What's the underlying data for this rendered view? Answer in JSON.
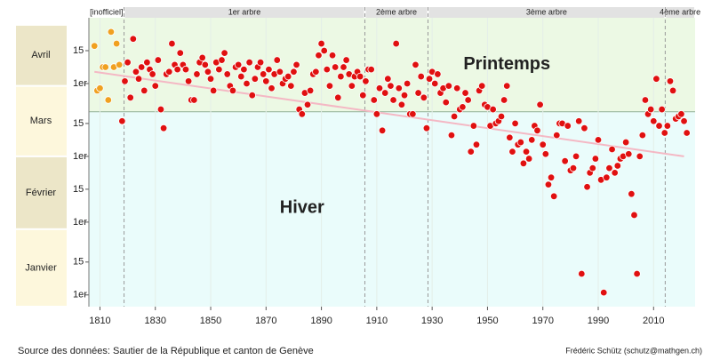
{
  "chart_data": {
    "type": "scatter",
    "title_spring": "Printemps",
    "title_winter": "Hiver",
    "source": "Source des données: Sautier de la République et canton de Genève",
    "author": "Frédéric Schütz (schutz@mathgen.ch)",
    "xlim": [
      1806,
      2025
    ],
    "ylim": [
      -4,
      119
    ],
    "xticks": [
      1810,
      1830,
      1850,
      1870,
      1890,
      1910,
      1930,
      1950,
      1970,
      1990,
      2010
    ],
    "yticks": [
      {
        "value": 1,
        "label": "1er"
      },
      {
        "value": 15,
        "label": "15"
      },
      {
        "value": 32,
        "label": "1er"
      },
      {
        "value": 46,
        "label": "15"
      },
      {
        "value": 60,
        "label": "1er"
      },
      {
        "value": 74,
        "label": "15"
      },
      {
        "value": 91,
        "label": "1er"
      },
      {
        "value": 105,
        "label": "15"
      }
    ],
    "months": [
      {
        "label": "Janvier",
        "start": -4,
        "end": 29
      },
      {
        "label": "Février",
        "start": 29,
        "end": 60
      },
      {
        "label": "Mars",
        "start": 60,
        "end": 90
      },
      {
        "label": "Avril",
        "start": 90,
        "end": 116
      }
    ],
    "season_boundary": 79,
    "periods": [
      {
        "label": "[inofficiel]",
        "start": 1806,
        "end": 1818.7,
        "color": "#f0a020"
      },
      {
        "label": "1er arbre",
        "start": 1818.7,
        "end": 1905.7,
        "color": "#333333"
      },
      {
        "label": "2ème arbre",
        "start": 1905.7,
        "end": 1928.5,
        "color": "#333333"
      },
      {
        "label": "3ème arbre",
        "start": 1928.5,
        "end": 2014.2,
        "color": "#333333"
      },
      {
        "label": "4ème arbre",
        "start": 2014.2,
        "end": 2025,
        "color": "#333333"
      }
    ],
    "trend": {
      "x": [
        1808,
        2021
      ],
      "values": [
        96,
        60
      ],
      "color": "#f4b8c4"
    },
    "series": [
      {
        "color": "#f0a020",
        "x": [
          1808,
          1809,
          1810,
          1811,
          1812,
          1813,
          1814,
          1815,
          1816,
          1817
        ],
        "values": [
          107,
          88,
          89,
          98,
          98,
          84,
          113,
          98,
          108,
          99
        ]
      },
      {
        "color": "#e01010",
        "x": [
          1818,
          1819,
          1820,
          1821,
          1822,
          1823,
          1824,
          1825,
          1826,
          1827,
          1828,
          1829,
          1830,
          1831,
          1832,
          1833,
          1834,
          1835,
          1836,
          1837,
          1838,
          1839,
          1840,
          1841,
          1842,
          1843,
          1844,
          1845,
          1846,
          1847,
          1848,
          1849,
          1850,
          1851,
          1852,
          1853,
          1854,
          1855,
          1856,
          1857,
          1858,
          1859,
          1860,
          1861,
          1862,
          1863,
          1864,
          1865,
          1866,
          1867,
          1868,
          1869,
          1870,
          1871,
          1872,
          1873,
          1874,
          1875,
          1876,
          1877,
          1878,
          1879,
          1880,
          1881,
          1882,
          1883,
          1884,
          1885,
          1886,
          1887,
          1888,
          1889,
          1890,
          1891,
          1892,
          1893,
          1894,
          1895,
          1896,
          1897,
          1898,
          1899,
          1900,
          1901,
          1902,
          1903,
          1904,
          1905,
          1906,
          1907,
          1908,
          1909,
          1910,
          1911,
          1912,
          1913,
          1914,
          1915,
          1916,
          1917,
          1918,
          1919,
          1920,
          1921,
          1922,
          1923,
          1924,
          1925,
          1926,
          1927,
          1928,
          1929,
          1930,
          1931,
          1932,
          1933,
          1934,
          1935,
          1936,
          1937,
          1938,
          1939,
          1940,
          1941,
          1942,
          1943,
          1944,
          1945,
          1946,
          1947,
          1948,
          1949,
          1950,
          1951,
          1952,
          1953,
          1954,
          1955,
          1956,
          1957,
          1958,
          1959,
          1960,
          1961,
          1962,
          1963,
          1964,
          1965,
          1966,
          1967,
          1968,
          1969,
          1970,
          1971,
          1972,
          1973,
          1974,
          1975,
          1976,
          1977,
          1978,
          1979,
          1980,
          1981,
          1982,
          1983,
          1984,
          1985,
          1986,
          1987,
          1988,
          1989,
          1990,
          1991,
          1992,
          1993,
          1994,
          1995,
          1996,
          1997,
          1998,
          1999,
          2000,
          2001,
          2002,
          2003,
          2004,
          2005,
          2006,
          2007,
          2008,
          2009,
          2010,
          2011,
          2012,
          2013,
          2014,
          2015,
          2016,
          2017,
          2018,
          2019,
          2020,
          2021,
          2022
        ],
        "values": [
          75,
          92,
          100,
          85,
          110,
          96,
          93,
          98,
          88,
          100,
          97,
          95,
          90,
          101,
          80,
          72,
          95,
          96,
          108,
          99,
          97,
          104,
          99,
          97,
          92,
          84,
          84,
          95,
          100,
          102,
          99,
          96,
          93,
          88,
          100,
          97,
          101,
          104,
          95,
          90,
          88,
          98,
          99,
          94,
          97,
          91,
          100,
          86,
          93,
          98,
          100,
          95,
          92,
          97,
          89,
          95,
          101,
          96,
          91,
          93,
          94,
          90,
          96,
          99,
          80,
          78,
          87,
          82,
          88,
          95,
          96,
          103,
          108,
          105,
          97,
          90,
          103,
          98,
          85,
          94,
          98,
          101,
          95,
          90,
          94,
          96,
          94,
          86,
          92,
          97,
          97,
          84,
          78,
          89,
          71,
          87,
          93,
          90,
          84,
          108,
          89,
          82,
          86,
          91,
          78,
          78,
          99,
          87,
          94,
          85,
          72,
          93,
          96,
          91,
          95,
          87,
          89,
          83,
          90,
          69,
          77,
          89,
          80,
          81,
          87,
          84,
          62,
          73,
          65,
          88,
          90,
          82,
          81,
          73,
          80,
          74,
          75,
          77,
          84,
          90,
          68,
          62,
          74,
          65,
          66,
          57,
          62,
          59,
          67,
          73,
          71,
          82,
          65,
          61,
          48,
          51,
          43,
          69,
          74,
          74,
          58,
          73,
          54,
          55,
          60,
          75,
          10,
          72,
          47,
          53,
          55,
          59,
          67,
          50,
          2,
          51,
          55,
          63,
          53,
          56,
          59,
          60,
          66,
          61,
          44,
          35,
          10,
          60,
          69,
          84,
          78,
          80,
          75,
          93,
          73,
          80,
          70,
          73,
          92,
          88,
          76,
          77,
          78,
          75,
          70
        ]
      }
    ]
  }
}
